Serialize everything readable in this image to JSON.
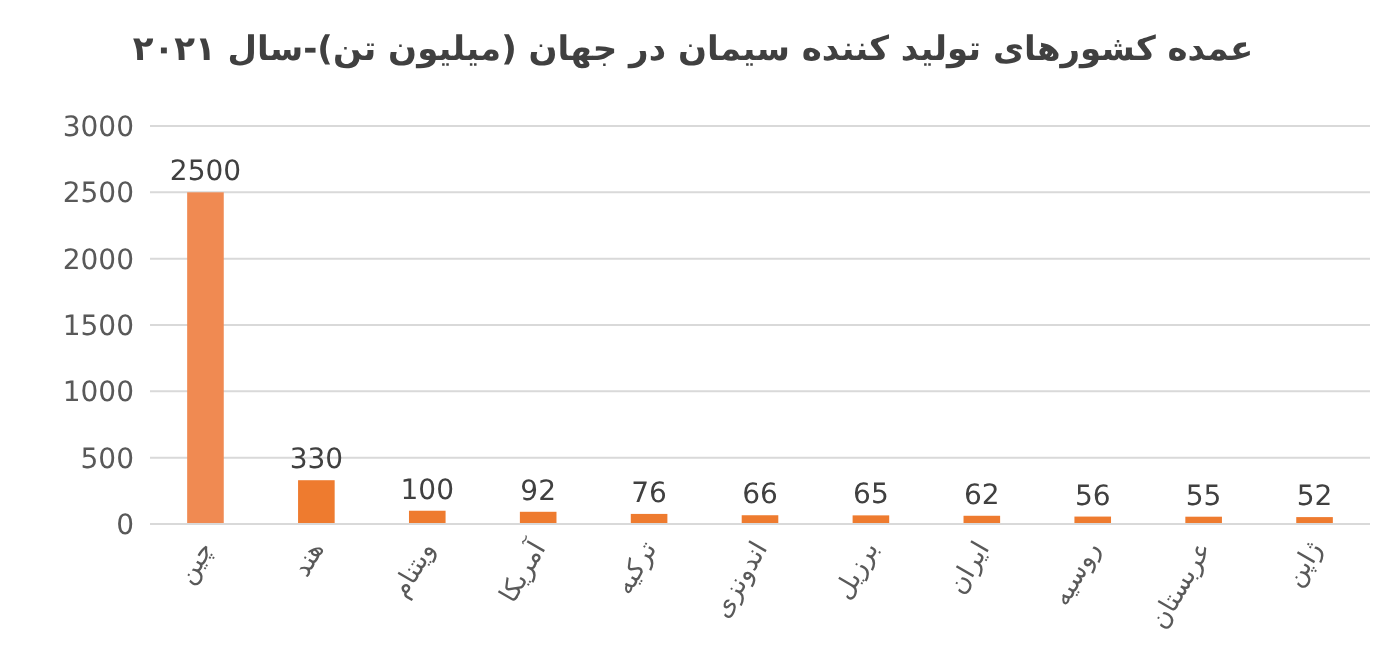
{
  "chart_data": {
    "type": "bar",
    "title": "عمده کشورهای تولید کننده سیمان در جهان (میلیون تن)-سال ۲۰۲۱",
    "categories": [
      "چین",
      "هند",
      "ویتنام",
      "آمریکا",
      "ترکیه",
      "اندونزی",
      "برزیل",
      "ایران",
      "روسیه",
      "عربستان",
      "ژاپن"
    ],
    "values": [
      2500,
      330,
      100,
      92,
      76,
      66,
      65,
      62,
      56,
      55,
      52
    ],
    "colors": [
      "#f08a52",
      "#ee7b2f",
      "#ee7b2f",
      "#ee7b2f",
      "#ee7b2f",
      "#ee7b2f",
      "#ee7b2f",
      "#ee7b2f",
      "#ee7b2f",
      "#ee7b2f",
      "#ee7b2f"
    ],
    "ylim": [
      0,
      3000
    ],
    "yticks": [
      0,
      500,
      1000,
      1500,
      2000,
      2500,
      3000
    ],
    "grid": "y",
    "data_labels": true
  }
}
